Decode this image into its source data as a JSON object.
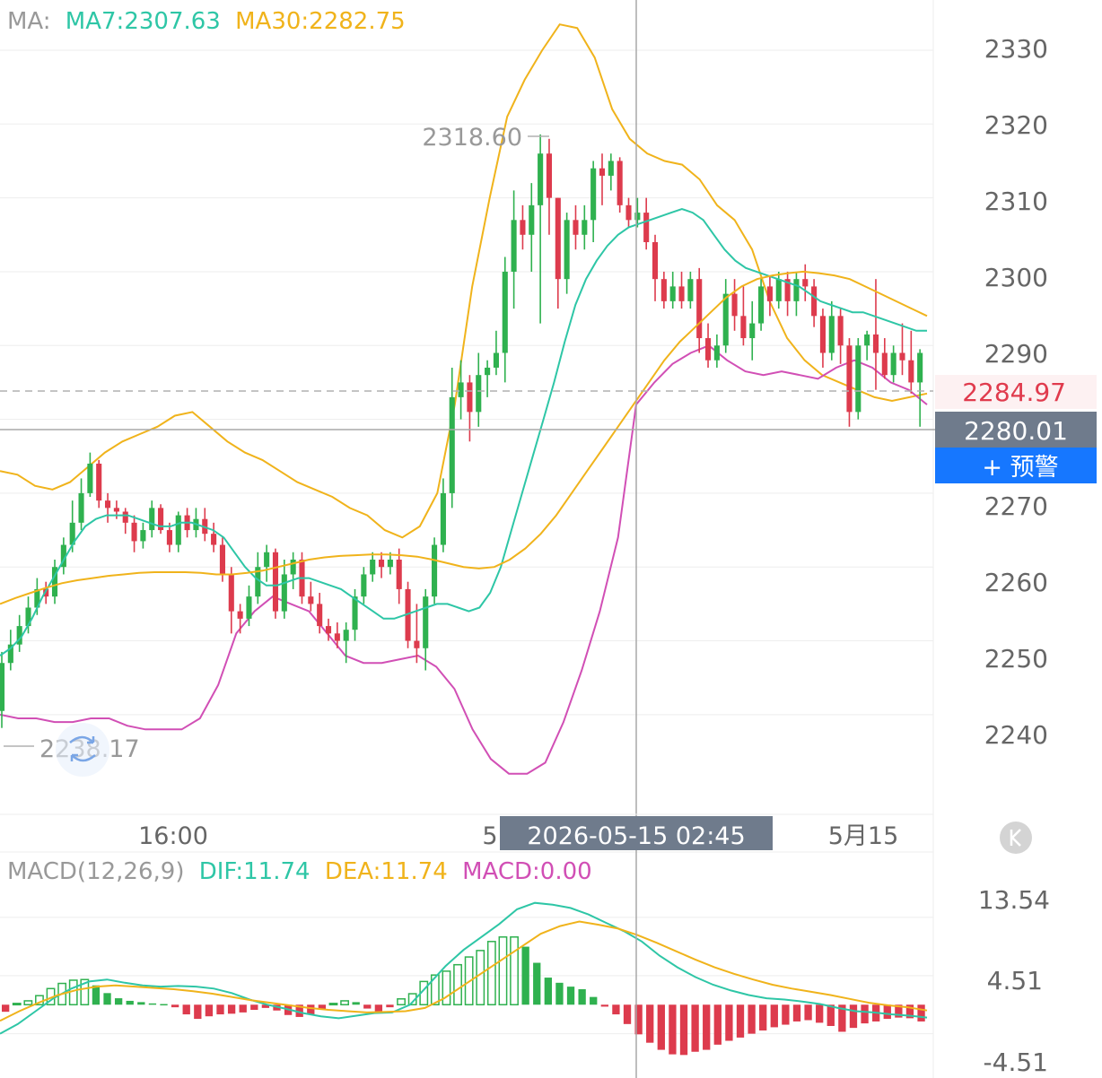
{
  "legend": {
    "ma_prefix": "MA:",
    "ma7_label": "MA7:2307.63",
    "ma30_label": "MA30:2282.75",
    "macd_prefix": "MACD(12,26,9)",
    "dif_label": "DIF:11.74",
    "dea_label": "DEA:11.74",
    "macd_label": "MACD:0.00"
  },
  "colors": {
    "up": "#2fb14f",
    "down": "#dd3b4d",
    "ma7": "#2ec6a6",
    "ma30": "#f0b31b",
    "boll_upper": "#f0b31b",
    "boll_lower": "#d14fb5",
    "dif": "#2ec6a6",
    "dea": "#f0b31b",
    "macd": "#d14fb5",
    "axis_text": "#666666",
    "grid": "#eeeeee",
    "last_price": "#e03b4d",
    "crosshair_tag": "#6f7b8c",
    "alert_button": "#1677ff"
  },
  "price_axis": {
    "ticks": [
      2330,
      2320,
      2310,
      2300,
      2290,
      2270,
      2260,
      2250,
      2240
    ],
    "range": [
      2226.5,
      2336.8
    ]
  },
  "time_axis": {
    "left_label": "16:00",
    "mid_label_fragment": "5",
    "right_label": "5月15"
  },
  "annotations": {
    "high_value": "2318.60",
    "low_value": "2238.17",
    "last_price": "2284.97",
    "crosshair_price": "2280.01",
    "crosshair_time": "2026-05-15 02:45",
    "alert_button": "+ 预警"
  },
  "macd_axis": {
    "ticks": [
      "13.54",
      "4.51",
      "-4.51"
    ],
    "range": [
      -11.37,
      18.12
    ]
  },
  "chart_data": {
    "type": "candlestick",
    "symbol_interval_minutes": 15,
    "candles": [
      [
        2240.5,
        2247.0,
        2238.2,
        2248.5
      ],
      [
        2247.0,
        2249.5,
        2246.0,
        2251.5
      ],
      [
        2249.5,
        2252.0,
        2248.5,
        2253.5
      ],
      [
        2252.0,
        2254.5,
        2251.0,
        2256.0
      ],
      [
        2254.5,
        2257.0,
        2253.5,
        2258.5
      ],
      [
        2257.0,
        2256.0,
        2255.0,
        2258.0
      ],
      [
        2256.0,
        2260.0,
        2255.0,
        2261.0
      ],
      [
        2260.0,
        2263.0,
        2259.0,
        2264.0
      ],
      [
        2263.0,
        2266.0,
        2262.0,
        2269.0
      ],
      [
        2266.0,
        2270.0,
        2265.0,
        2272.0
      ],
      [
        2270.0,
        2274.0,
        2269.5,
        2275.5
      ],
      [
        2274.0,
        2269.0,
        2268.0,
        2274.5
      ],
      [
        2269.0,
        2268.0,
        2266.0,
        2270.0
      ],
      [
        2268.0,
        2267.5,
        2266.5,
        2269.0
      ],
      [
        2267.5,
        2266.0,
        2264.5,
        2268.0
      ],
      [
        2266.0,
        2263.5,
        2262.0,
        2267.0
      ],
      [
        2263.5,
        2265.0,
        2262.5,
        2266.0
      ],
      [
        2265.0,
        2268.0,
        2264.0,
        2269.0
      ],
      [
        2268.0,
        2265.0,
        2264.5,
        2268.5
      ],
      [
        2265.0,
        2263.0,
        2262.0,
        2266.0
      ],
      [
        2263.0,
        2267.0,
        2262.0,
        2267.5
      ],
      [
        2267.0,
        2265.0,
        2264.0,
        2268.0
      ],
      [
        2265.0,
        2266.5,
        2264.0,
        2268.0
      ],
      [
        2266.5,
        2264.5,
        2263.5,
        2268.0
      ],
      [
        2264.5,
        2263.0,
        2262.0,
        2266.0
      ],
      [
        2263.0,
        2259.0,
        2258.0,
        2264.0
      ],
      [
        2259.0,
        2254.0,
        2251.0,
        2260.0
      ],
      [
        2254.0,
        2253.0,
        2251.0,
        2255.0
      ],
      [
        2253.0,
        2256.0,
        2252.0,
        2257.5
      ],
      [
        2256.0,
        2260.0,
        2255.0,
        2262.0
      ],
      [
        2260.0,
        2262.0,
        2258.0,
        2263.0
      ],
      [
        2262.0,
        2254.0,
        2253.0,
        2262.5
      ],
      [
        2254.0,
        2259.0,
        2253.0,
        2261.0
      ],
      [
        2259.0,
        2261.0,
        2257.0,
        2262.0
      ],
      [
        2261.0,
        2256.0,
        2255.0,
        2262.0
      ],
      [
        2256.0,
        2255.0,
        2254.0,
        2258.0
      ],
      [
        2255.0,
        2252.0,
        2251.0,
        2256.5
      ],
      [
        2252.0,
        2251.0,
        2250.0,
        2253.0
      ],
      [
        2251.0,
        2250.0,
        2249.0,
        2252.5
      ],
      [
        2250.0,
        2251.5,
        2247.0,
        2252.5
      ],
      [
        2251.5,
        2256.0,
        2250.0,
        2257.0
      ],
      [
        2256.0,
        2259.0,
        2255.0,
        2260.0
      ],
      [
        2259.0,
        2261.0,
        2258.0,
        2262.0
      ],
      [
        2261.0,
        2260.0,
        2258.5,
        2262.0
      ],
      [
        2260.0,
        2261.0,
        2259.0,
        2262.0
      ],
      [
        2261.0,
        2257.0,
        2255.0,
        2262.5
      ],
      [
        2257.0,
        2250.0,
        2249.0,
        2258.0
      ],
      [
        2250.0,
        2249.0,
        2247.0,
        2255.0
      ],
      [
        2249.0,
        2256.0,
        2246.0,
        2257.0
      ],
      [
        2256.0,
        2263.0,
        2255.0,
        2264.0
      ],
      [
        2263.0,
        2270.0,
        2262.0,
        2272.0
      ],
      [
        2270.0,
        2283.0,
        2268.0,
        2287.0
      ],
      [
        2283.0,
        2285.0,
        2280.0,
        2288.0
      ],
      [
        2285.0,
        2281.0,
        2277.0,
        2286.0
      ],
      [
        2281.0,
        2286.0,
        2279.0,
        2289.0
      ],
      [
        2286.0,
        2287.0,
        2283.0,
        2288.0
      ],
      [
        2287.0,
        2289.0,
        2286.0,
        2292.0
      ],
      [
        2289.0,
        2300.0,
        2285.0,
        2302.0
      ],
      [
        2300.0,
        2307.0,
        2295.0,
        2311.0
      ],
      [
        2307.0,
        2305.0,
        2303.0,
        2309.0
      ],
      [
        2305.0,
        2309.0,
        2300.0,
        2312.0
      ],
      [
        2309.0,
        2316.0,
        2293.0,
        2318.6
      ],
      [
        2316.0,
        2310.0,
        2305.0,
        2318.0
      ],
      [
        2310.0,
        2299.0,
        2295.0,
        2310.0
      ],
      [
        2299.0,
        2307.0,
        2297.0,
        2308.0
      ],
      [
        2307.0,
        2305.0,
        2303.0,
        2309.0
      ],
      [
        2305.0,
        2307.0,
        2303.0,
        2309.0
      ],
      [
        2307.0,
        2314.0,
        2304.0,
        2315.0
      ],
      [
        2314.0,
        2313.0,
        2309.0,
        2316.0
      ],
      [
        2313.0,
        2315.0,
        2311.0,
        2316.0
      ],
      [
        2315.0,
        2309.0,
        2308.0,
        2315.5
      ],
      [
        2309.0,
        2307.0,
        2306.0,
        2310.0
      ],
      [
        2307.0,
        2308.0,
        2306.0,
        2310.0
      ],
      [
        2308.0,
        2304.0,
        2303.0,
        2310.0
      ],
      [
        2304.0,
        2299.0,
        2296.0,
        2305.0
      ],
      [
        2299.0,
        2296.0,
        2295.0,
        2300.0
      ],
      [
        2296.0,
        2298.0,
        2295.0,
        2300.0
      ],
      [
        2298.0,
        2296.0,
        2295.0,
        2300.0
      ],
      [
        2296.0,
        2299.0,
        2295.0,
        2300.0
      ],
      [
        2299.0,
        2291.0,
        2289.0,
        2300.5
      ],
      [
        2291.0,
        2288.0,
        2287.0,
        2293.0
      ],
      [
        2288.0,
        2290.0,
        2287.0,
        2291.5
      ],
      [
        2290.0,
        2297.0,
        2289.0,
        2299.0
      ],
      [
        2297.0,
        2294.0,
        2292.0,
        2299.0
      ],
      [
        2294.0,
        2291.0,
        2290.0,
        2298.0
      ],
      [
        2291.0,
        2293.0,
        2288.0,
        2296.0
      ],
      [
        2293.0,
        2298.0,
        2292.0,
        2299.0
      ],
      [
        2298.0,
        2296.0,
        2294.0,
        2299.5
      ],
      [
        2296.0,
        2299.0,
        2295.0,
        2300.0
      ],
      [
        2299.0,
        2296.0,
        2294.0,
        2300.0
      ],
      [
        2296.0,
        2299.0,
        2294.0,
        2300.0
      ],
      [
        2299.0,
        2298.0,
        2296.0,
        2301.0
      ],
      [
        2298.0,
        2294.0,
        2292.5,
        2299.0
      ],
      [
        2294.0,
        2289.0,
        2287.0,
        2295.0
      ],
      [
        2289.0,
        2294.0,
        2288.0,
        2296.0
      ],
      [
        2294.0,
        2290.0,
        2287.5,
        2295.0
      ],
      [
        2290.0,
        2281.0,
        2279.0,
        2291.0
      ],
      [
        2281.0,
        2290.0,
        2280.0,
        2291.0
      ],
      [
        2290.0,
        2291.5,
        2288.0,
        2292.0
      ],
      [
        2291.5,
        2289.0,
        2284.0,
        2299.0
      ],
      [
        2289.0,
        2286.0,
        2285.5,
        2291.0
      ],
      [
        2286.0,
        2289.0,
        2285.0,
        2290.0
      ],
      [
        2289.0,
        2288.0,
        2286.0,
        2293.0
      ],
      [
        2288.0,
        2285.0,
        2283.5,
        2292.0
      ],
      [
        2285.0,
        2289.0,
        2279.0,
        2289.5
      ]
    ],
    "ma7": [
      2248.0,
      2249.0,
      2250.5,
      2253.0,
      2256.0,
      2258.5,
      2261.0,
      2263.5,
      2265.5,
      2266.5,
      2267.0,
      2267.0,
      2267.0,
      2266.5,
      2266.0,
      2265.5,
      2265.5,
      2266.0,
      2266.0,
      2265.5,
      2265.0,
      2264.0,
      2262.0,
      2260.0,
      2258.5,
      2257.5,
      2257.5,
      2258.0,
      2258.5,
      2258.5,
      2258.0,
      2257.5,
      2257.0,
      2256.0,
      2255.0,
      2254.0,
      2253.0,
      2253.0,
      2253.5,
      2254.0,
      2254.5,
      2255.0,
      2255.0,
      2254.5,
      2254.0,
      2254.5,
      2256.5,
      2260.0,
      2265.0,
      2270.0,
      2275.0,
      2280.0,
      2285.0,
      2290.5,
      2295.5,
      2299.0,
      2301.5,
      2303.5,
      2305.0,
      2306.0,
      2306.5,
      2307.0,
      2307.5,
      2308.0,
      2308.5,
      2308.0,
      2307.0,
      2305.0,
      2303.0,
      2301.5,
      2300.5,
      2300.0,
      2299.5,
      2299.0,
      2298.5,
      2298.0,
      2297.0,
      2296.0,
      2295.5,
      2295.0,
      2294.5,
      2294.5,
      2294.0,
      2293.5,
      2293.0,
      2292.5,
      2292.0,
      2292.0
    ],
    "ma30": [
      2255.0,
      2255.8,
      2256.5,
      2257.2,
      2257.8,
      2258.2,
      2258.5,
      2258.8,
      2259.0,
      2259.2,
      2259.3,
      2259.3,
      2259.3,
      2259.2,
      2259.0,
      2259.0,
      2259.2,
      2259.5,
      2260.0,
      2260.5,
      2261.0,
      2261.3,
      2261.5,
      2261.6,
      2261.7,
      2261.7,
      2261.6,
      2261.4,
      2261.0,
      2260.5,
      2260.0,
      2259.8,
      2260.0,
      2261.0,
      2262.5,
      2264.5,
      2267.0,
      2270.0,
      2273.0,
      2276.0,
      2279.0,
      2282.0,
      2285.0,
      2288.0,
      2290.5,
      2292.5,
      2294.5,
      2296.5,
      2298.0,
      2299.0,
      2299.5,
      2299.8,
      2300.0,
      2299.8,
      2299.5,
      2299.0,
      2298.0,
      2297.0,
      2296.0,
      2295.0,
      2294.0
    ],
    "boll_upper": [
      2273.0,
      2272.5,
      2271.0,
      2270.5,
      2271.5,
      2273.5,
      2275.5,
      2277.0,
      2278.0,
      2279.0,
      2280.5,
      2281.0,
      2279.0,
      2277.0,
      2275.5,
      2274.5,
      2273.0,
      2271.5,
      2270.5,
      2269.5,
      2268.0,
      2267.0,
      2265.0,
      2264.0,
      2265.5,
      2270.0,
      2282.0,
      2298.0,
      2310.0,
      2321.0,
      2326.0,
      2330.0,
      2333.5,
      2333.0,
      2329.0,
      2322.0,
      2318.0,
      2316.0,
      2315.0,
      2314.5,
      2312.5,
      2309.0,
      2307.0,
      2303.0,
      2296.0,
      2291.0,
      2288.0,
      2286.0,
      2285.0,
      2284.0,
      2283.0,
      2282.5,
      2283.0,
      2283.5
    ],
    "boll_lower": [
      2240.0,
      2239.5,
      2239.5,
      2239.0,
      2239.0,
      2239.5,
      2239.5,
      2238.5,
      2238.0,
      2238.0,
      2238.0,
      2239.5,
      2244.0,
      2251.0,
      2254.0,
      2256.0,
      2255.0,
      2254.0,
      2251.0,
      2248.0,
      2247.0,
      2247.0,
      2247.5,
      2248.0,
      2246.5,
      2243.5,
      2238.0,
      2234.0,
      2232.0,
      2232.0,
      2233.5,
      2239.0,
      2246.0,
      2254.0,
      2264.0,
      2282.0,
      2285.0,
      2287.5,
      2289.0,
      2290.0,
      2288.0,
      2286.5,
      2286.0,
      2286.5,
      2286.0,
      2285.5,
      2287.0,
      2288.0,
      2287.0,
      2285.0,
      2284.0,
      2282.0
    ],
    "macd_hist": [
      -1.1,
      0.2,
      0.6,
      1.4,
      2.5,
      3.3,
      3.8,
      3.9,
      3.0,
      1.8,
      1.0,
      0.6,
      0.4,
      0.2,
      0.1,
      -0.4,
      -1.5,
      -2.2,
      -1.8,
      -1.5,
      -1.4,
      -1.2,
      -0.8,
      -0.5,
      -0.9,
      -1.6,
      -1.9,
      -1.5,
      -0.7,
      0.2,
      0.6,
      0.4,
      -0.6,
      -1.2,
      -0.4,
      0.9,
      1.7,
      3.6,
      4.6,
      5.2,
      6.2,
      7.4,
      8.4,
      9.8,
      10.5,
      10.5,
      9.0,
      6.5,
      4.2,
      3.4,
      2.8,
      2.4,
      1.2,
      -0.3,
      -1.5,
      -3.0,
      -4.6,
      -5.9,
      -7.0,
      -7.7,
      -7.8,
      -7.3,
      -7.0,
      -6.2,
      -5.6,
      -5.1,
      -4.5,
      -4.0,
      -3.5,
      -3.1,
      -2.6,
      -2.4,
      -2.8,
      -3.3,
      -4.2,
      -3.6,
      -2.9,
      -2.6,
      -2.2,
      -2.0,
      -2.1,
      -2.6
    ],
    "dif": [
      -4.5,
      -3.0,
      -1.0,
      1.0,
      2.5,
      3.6,
      3.9,
      3.4,
      3.0,
      2.8,
      2.9,
      2.8,
      2.5,
      1.8,
      0.8,
      0.0,
      -0.6,
      -1.3,
      -1.8,
      -2.1,
      -1.7,
      -1.3,
      -1.2,
      0.0,
      3.0,
      6.0,
      8.5,
      10.5,
      12.5,
      14.8,
      15.8,
      15.5,
      15.0,
      14.0,
      12.7,
      11.4,
      9.8,
      7.6,
      5.8,
      4.3,
      3.1,
      2.2,
      1.5,
      1.0,
      0.8,
      0.5,
      0.1,
      -0.5,
      -1.0,
      -1.2,
      -1.5,
      -1.7,
      -2.0
    ],
    "dea": [
      -2.5,
      -1.0,
      0.3,
      1.5,
      2.3,
      2.8,
      3.0,
      2.8,
      2.6,
      2.4,
      2.1,
      1.7,
      1.2,
      0.7,
      0.3,
      -0.1,
      -0.5,
      -0.8,
      -1.0,
      -1.2,
      -1.1,
      -1.0,
      -0.5,
      1.0,
      3.0,
      5.0,
      7.0,
      9.0,
      11.0,
      12.2,
      12.9,
      12.4,
      11.8,
      10.8,
      9.6,
      8.3,
      7.0,
      5.8,
      4.8,
      3.9,
      3.1,
      2.5,
      2.0,
      1.5,
      0.9,
      0.3,
      -0.1,
      -0.4,
      -0.9
    ]
  }
}
